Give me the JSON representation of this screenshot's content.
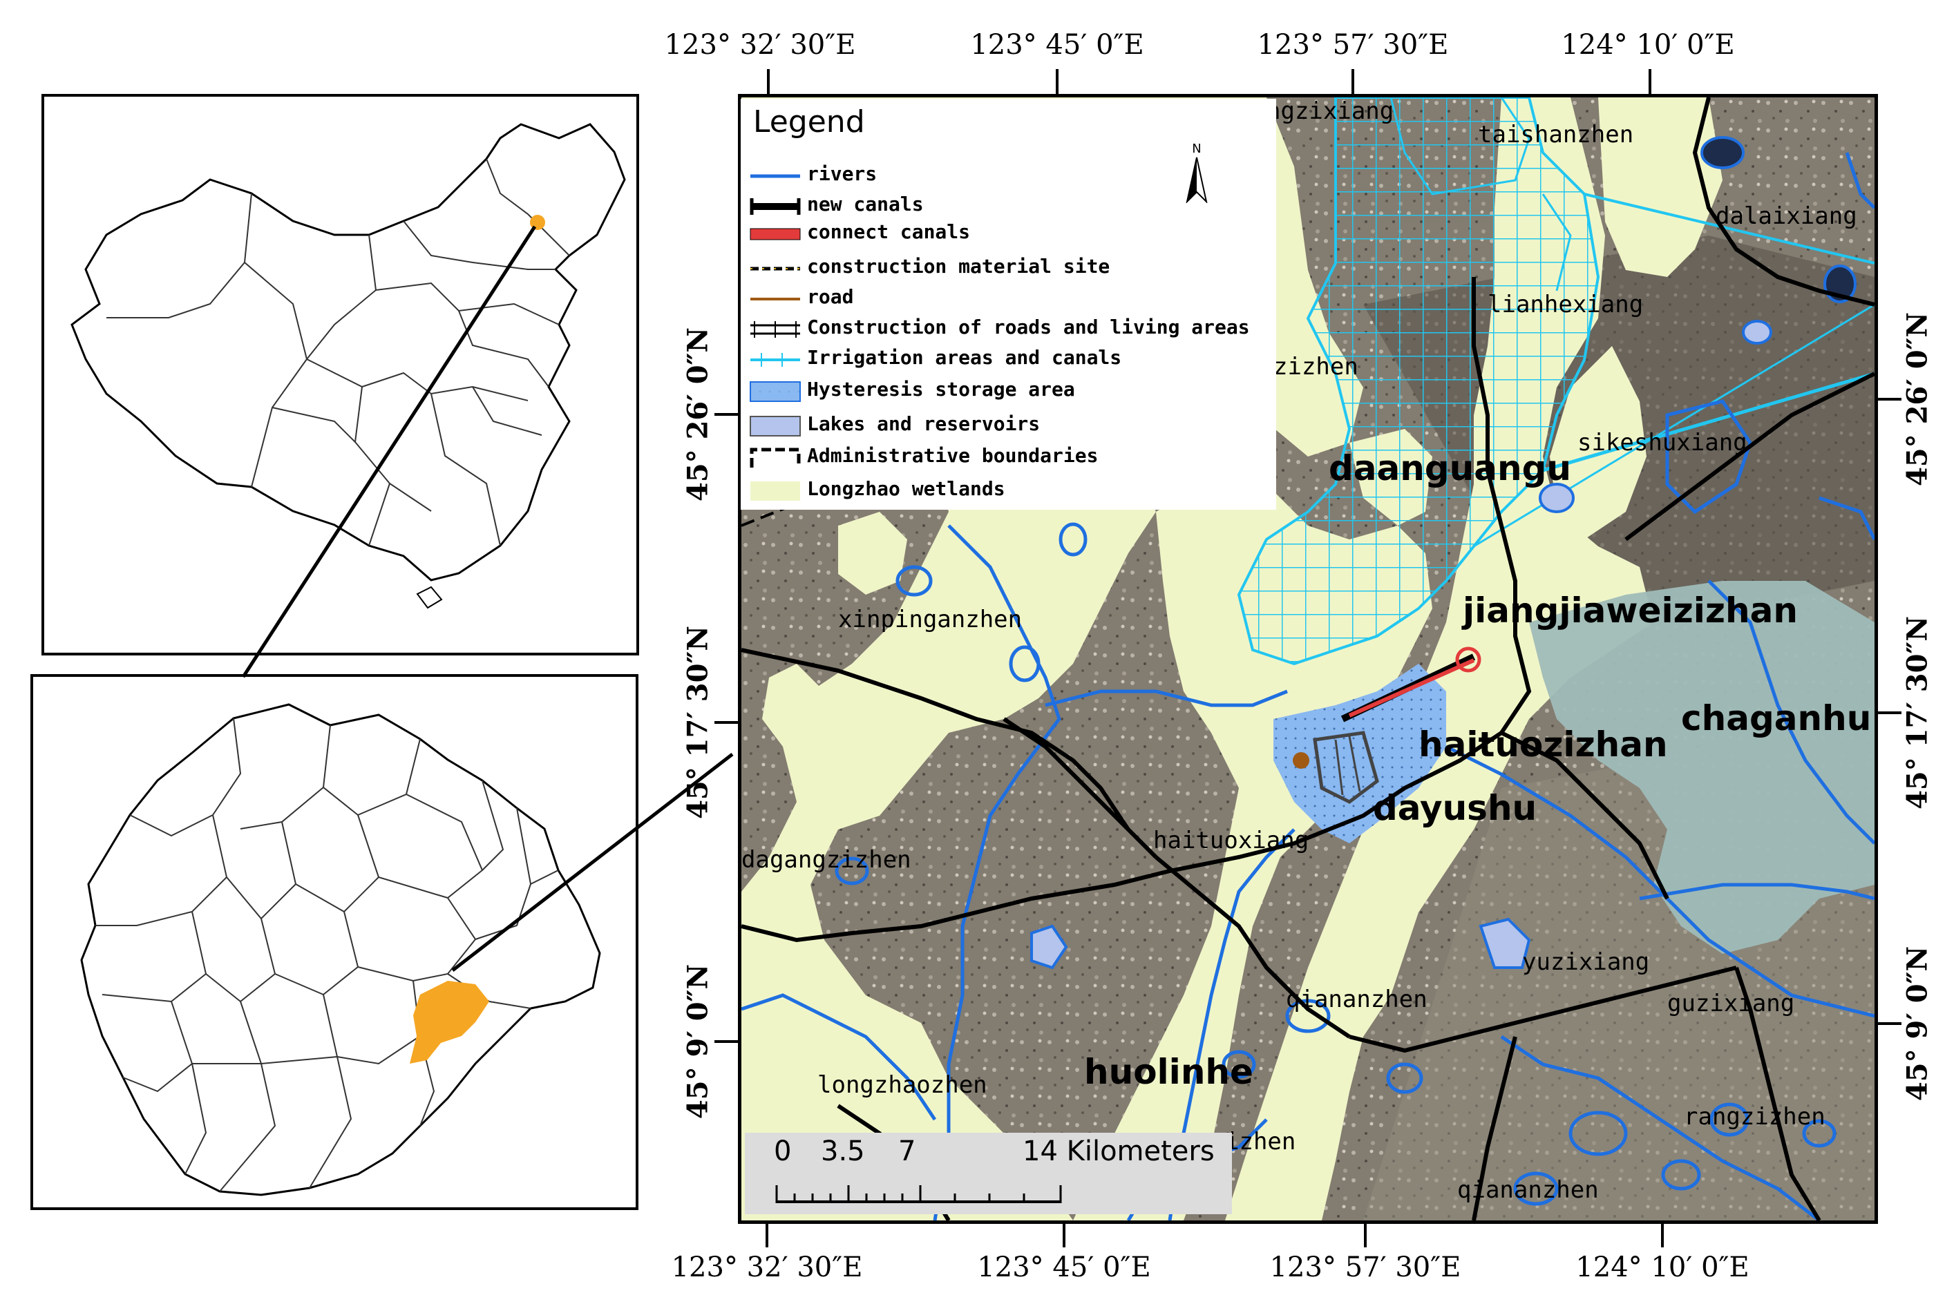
{
  "map": {
    "legend_title": "Legend",
    "legend": [
      {
        "symbol": "river",
        "label": "rivers"
      },
      {
        "symbol": "new-canal",
        "label": "new canals"
      },
      {
        "symbol": "connect-canal",
        "label": "connect canals"
      },
      {
        "symbol": "material-site",
        "label": "construction material site"
      },
      {
        "symbol": "road",
        "label": "road"
      },
      {
        "symbol": "construction-area",
        "label": "Construction of roads and living areas"
      },
      {
        "symbol": "irrigation",
        "label": "Irrigation areas and canals"
      },
      {
        "symbol": "storage",
        "label": "Hysteresis storage area"
      },
      {
        "symbol": "lake",
        "label": "Lakes and reservoirs"
      },
      {
        "symbol": "admin-boundary",
        "label": "Administrative boundaries"
      },
      {
        "symbol": "wetland",
        "label": "Longzhao wetlands"
      }
    ],
    "north_label": "N",
    "coords_top": [
      "123° 32′ 30″E",
      "123° 45′ 0″E",
      "123° 57′ 30″E",
      "124° 10′ 0″E"
    ],
    "coords_bottom": [
      "123° 32′ 30″E",
      "123° 45′ 0″E",
      "123° 57′ 30″E",
      "124° 10′ 0″E"
    ],
    "coords_left": [
      "45° 26′ 0″N",
      "45° 17′ 30″N",
      "45° 9′ 0″N"
    ],
    "coords_right": [
      "45° 26′ 0″N",
      "45° 17′ 30″N",
      "45° 9′ 0″N"
    ],
    "scale": {
      "ticks": [
        "0",
        "3.5",
        "7",
        "14 Kilometers"
      ]
    },
    "places": [
      "ngzixiang",
      "taishanzhen",
      "dalaixiang",
      "lianhexiang",
      "zizhen",
      "sikeshuxiang",
      "daanguangu",
      "jiangjiaweizizhan",
      "xinpinganzhen",
      "chaganhu",
      "haituozizhan",
      "dayushu",
      "haituoxiang",
      "dagangzizhen",
      "yuzixiang",
      "qiananzhen",
      "guzixiang",
      "huolinhe",
      "longzhaozhen",
      "izhen",
      "rangzizhen",
      "qiananzhen"
    ]
  },
  "colors": {
    "river": "#1f6fe0",
    "irrigation": "#22c6f0",
    "wetland": "#f0f5c8",
    "lake": "#b4c4ec",
    "storage": "#8ab8f0",
    "connect_canal": "#e33b3b",
    "road": "#a05a14",
    "highlight": "#f5a623",
    "water_body": "#9fbcb8",
    "satellite": "#7a7468"
  }
}
